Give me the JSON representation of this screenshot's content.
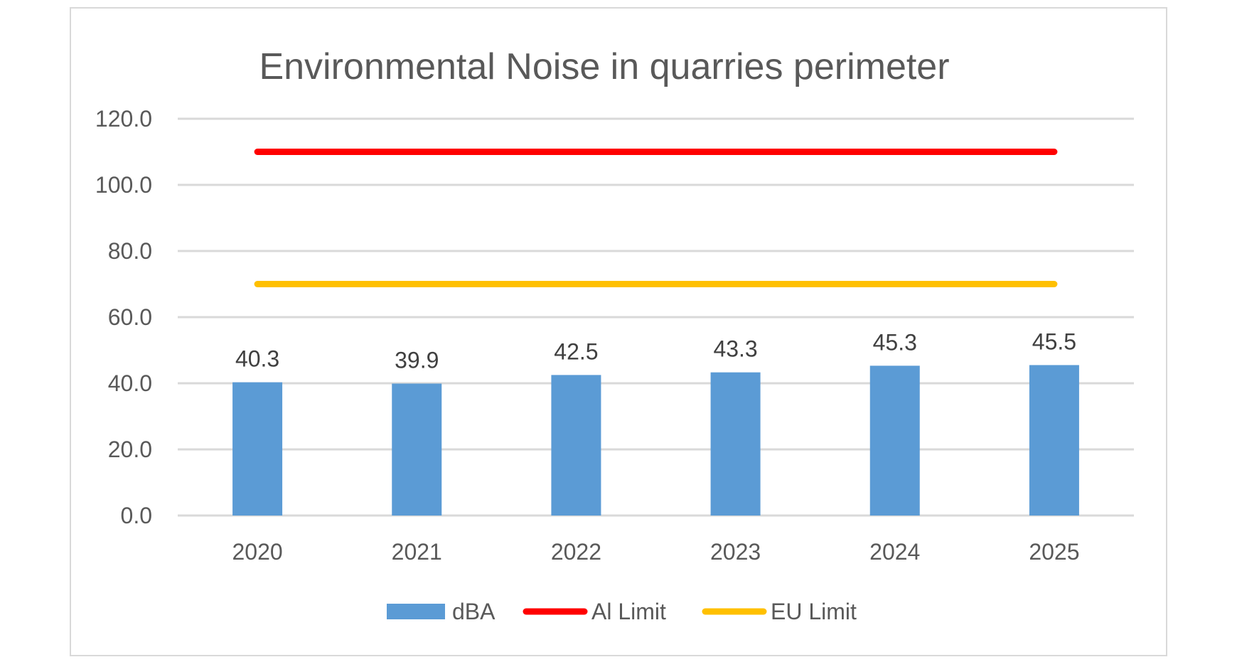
{
  "chart_data": {
    "type": "bar",
    "title": "Environmental Noise in quarries perimeter",
    "xlabel": "",
    "ylabel": "",
    "categories": [
      "2020",
      "2021",
      "2022",
      "2023",
      "2024",
      "2025"
    ],
    "ylim": [
      0,
      120
    ],
    "yticks": [
      "0.0",
      "20.0",
      "40.0",
      "60.0",
      "80.0",
      "100.0",
      "120.0"
    ],
    "grid": true,
    "legend_position": "bottom",
    "series": [
      {
        "name": "dBA",
        "type": "bar",
        "color": "#5b9bd5",
        "values": [
          40.3,
          39.9,
          42.5,
          43.3,
          45.3,
          45.5
        ],
        "labels": [
          "40.3",
          "39.9",
          "42.5",
          "43.3",
          "45.3",
          "45.5"
        ]
      },
      {
        "name": "Al Limit",
        "type": "line",
        "color": "#ff0000",
        "values": [
          110,
          110,
          110,
          110,
          110,
          110
        ]
      },
      {
        "name": "EU Limit",
        "type": "line",
        "color": "#ffc000",
        "values": [
          70,
          70,
          70,
          70,
          70,
          70
        ]
      }
    ]
  }
}
